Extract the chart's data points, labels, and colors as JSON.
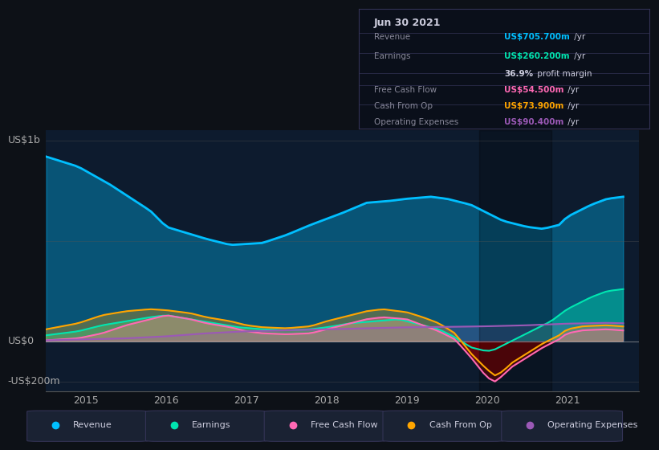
{
  "background_color": "#0d1117",
  "chart_bg_color": "#0d1b2e",
  "ylabel_top": "US$1b",
  "ylabel_zero": "US$0",
  "ylabel_bottom": "-US$200m",
  "x_ticks": [
    "2015",
    "2016",
    "2017",
    "2018",
    "2019",
    "2020",
    "2021"
  ],
  "ylim": [
    -250,
    1050
  ],
  "xlim": [
    2014.5,
    2021.9
  ],
  "colors": {
    "revenue": "#00bfff",
    "earnings": "#00e5b0",
    "free_cash_flow": "#ff69b4",
    "cash_from_op": "#ffa500",
    "operating_expenses": "#9b59b6"
  },
  "info_box": {
    "date": "Jun 30 2021",
    "revenue_label": "Revenue",
    "revenue_value": "US$705.700m",
    "revenue_suffix": " /yr",
    "earnings_label": "Earnings",
    "earnings_value": "US$260.200m",
    "earnings_suffix": " /yr",
    "margin_value": "36.9%",
    "margin_suffix": " profit margin",
    "fcf_label": "Free Cash Flow",
    "fcf_value": "US$54.500m",
    "fcf_suffix": " /yr",
    "cashop_label": "Cash From Op",
    "cashop_value": "US$73.900m",
    "cashop_suffix": " /yr",
    "opex_label": "Operating Expenses",
    "opex_value": "US$90.400m",
    "opex_suffix": " /yr"
  },
  "legend": [
    {
      "label": "Revenue",
      "color": "#00bfff"
    },
    {
      "label": "Earnings",
      "color": "#00e5b0"
    },
    {
      "label": "Free Cash Flow",
      "color": "#ff69b4"
    },
    {
      "label": "Cash From Op",
      "color": "#ffa500"
    },
    {
      "label": "Operating Expenses",
      "color": "#9b59b6"
    }
  ]
}
